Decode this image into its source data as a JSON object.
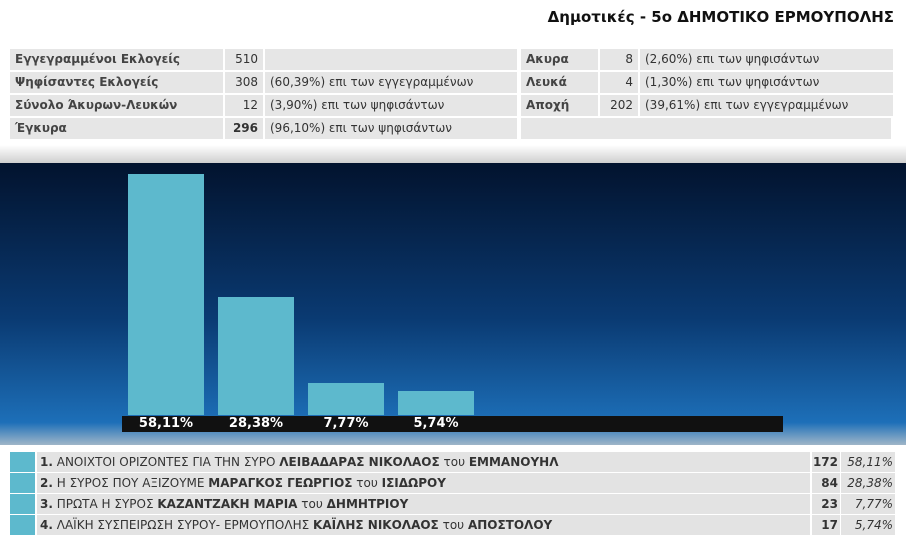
{
  "header": {
    "title": "Δημοτικές - 5ο ΔΗΜΟΤΙΚΟ ΕΡΜΟΥΠΟΛΗΣ"
  },
  "stats": {
    "left": [
      {
        "label": "Εγγεγραμμένοι Εκλογείς",
        "value": 510
      },
      {
        "label": "Ψηφίσαντες Εκλογείς",
        "value": 308,
        "note": "(60,39%) επι των εγγεγραμμένων"
      },
      {
        "label": "Σύνολο Άκυρων-Λευκών",
        "value": 12,
        "note": "(3,90%) επι των ψηφισάντων"
      },
      {
        "label": "Έγκυρα",
        "value": 296,
        "note": "(96,10%) επι των ψηφισάντων"
      }
    ],
    "right": [
      {
        "label": "Ακυρα",
        "value": 8,
        "note": "(2,60%) επι των ψηφισάντων"
      },
      {
        "label": "Λευκά",
        "value": 4,
        "note": "(1,30%) επι των ψηφισάντων"
      },
      {
        "label": "Αποχή",
        "value": 202,
        "note": "(39,61%) επι των εγγεγραμμένων"
      }
    ]
  },
  "chart_data": {
    "type": "bar",
    "color": "#5db9cd",
    "values": [
      58.11,
      28.38,
      7.77,
      5.74
    ],
    "value_labels": [
      "58,11%",
      "28,38%",
      "7,77%",
      "5,74%"
    ]
  },
  "results": [
    {
      "rank": "1.",
      "party": "ΑΝΟΙΧΤΟΙ ΟΡΙΖΟΝΤΕΣ ΓΙΑ ΤΗΝ ΣΥΡΟ",
      "candidate": "ΛΕΙΒΑΔΑΡΑΣ ΝΙΚΟΛΑΟΣ",
      "of": "του",
      "father": "ΕΜΜΑΝΟΥΗΛ",
      "votes": 172,
      "percent": "58,11%"
    },
    {
      "rank": "2.",
      "party": "Η ΣΥΡΟΣ ΠΟΥ ΑΞΙΖΟΥΜΕ",
      "candidate": "ΜΑΡΑΓΚΟΣ ΓΕΩΡΓΙΟΣ",
      "of": "του",
      "father": "ΙΣΙΔΩΡΟΥ",
      "votes": 84,
      "percent": "28,38%"
    },
    {
      "rank": "3.",
      "party": "ΠΡΩΤΑ Η ΣΥΡΟΣ",
      "candidate": "ΚΑΖΑΝΤΖΑΚΗ ΜΑΡΙΑ",
      "of": "του",
      "father": "ΔΗΜΗΤΡΙΟΥ",
      "votes": 23,
      "percent": "7,77%"
    },
    {
      "rank": "4.",
      "party": "ΛΑΪΚΗ ΣΥΣΠΕΙΡΩΣΗ ΣΥΡΟΥ- ΕΡΜΟΥΠΟΛΗΣ",
      "candidate": "ΚΑΪΛΗΣ ΝΙΚΟΛΑΟΣ",
      "of": "του",
      "father": "ΑΠΟΣΤΟΛΟΥ",
      "votes": 17,
      "percent": "5,74%"
    }
  ]
}
